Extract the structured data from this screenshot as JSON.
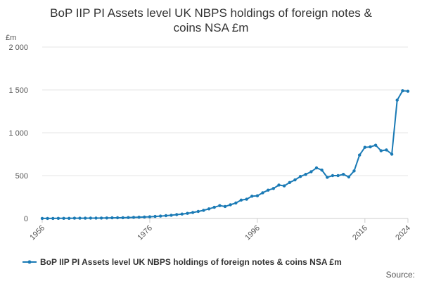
{
  "colors": {
    "series": "#1a7ab5",
    "grid": "#e6e6e6",
    "text": "#333333"
  },
  "source_label": "Source:",
  "chart_data": {
    "type": "line",
    "title": "BoP IIP PI Assets level UK NBPS holdings of foreign notes & coins NSA £m",
    "title_lines": [
      "BoP IIP PI Assets level UK NBPS holdings of foreign notes &",
      "coins NSA £m"
    ],
    "unit": "£m",
    "xlabel": "",
    "ylabel": "",
    "xlim": [
      1956,
      2024
    ],
    "ylim": [
      0,
      2000
    ],
    "yticks": [
      0,
      500,
      1000,
      1500,
      2000
    ],
    "ytick_labels": [
      "0",
      "500",
      "1 000",
      "1 500",
      "2 000"
    ],
    "xticks": [
      1956,
      1976,
      1996,
      2016,
      2024
    ],
    "xtick_labels": [
      "1956",
      "1976",
      "1996",
      "2016",
      "2024"
    ],
    "grid": true,
    "legend_position": "bottom",
    "series": [
      {
        "name": "BoP IIP PI Assets level UK NBPS holdings of foreign notes & coins NSA £m",
        "x": [
          1956,
          1957,
          1958,
          1959,
          1960,
          1961,
          1962,
          1963,
          1964,
          1965,
          1966,
          1967,
          1968,
          1969,
          1970,
          1971,
          1972,
          1973,
          1974,
          1975,
          1976,
          1977,
          1978,
          1979,
          1980,
          1981,
          1982,
          1983,
          1984,
          1985,
          1986,
          1987,
          1988,
          1989,
          1990,
          1991,
          1992,
          1993,
          1994,
          1995,
          1996,
          1997,
          1998,
          1999,
          2000,
          2001,
          2002,
          2003,
          2004,
          2005,
          2006,
          2007,
          2008,
          2009,
          2010,
          2011,
          2012,
          2013,
          2014,
          2015,
          2016,
          2017,
          2018,
          2019,
          2020,
          2021,
          2022,
          2023,
          2024
        ],
        "values": [
          1,
          1,
          1,
          2,
          2,
          2,
          3,
          3,
          3,
          4,
          4,
          5,
          6,
          7,
          8,
          9,
          11,
          13,
          15,
          17,
          20,
          24,
          28,
          33,
          38,
          45,
          52,
          60,
          70,
          82,
          95,
          112,
          130,
          150,
          140,
          160,
          180,
          215,
          225,
          260,
          265,
          300,
          330,
          350,
          390,
          380,
          420,
          450,
          490,
          515,
          545,
          590,
          565,
          480,
          500,
          500,
          515,
          485,
          555,
          740,
          830,
          835,
          855,
          790,
          800,
          750,
          1380,
          1490,
          1485
        ]
      }
    ]
  }
}
